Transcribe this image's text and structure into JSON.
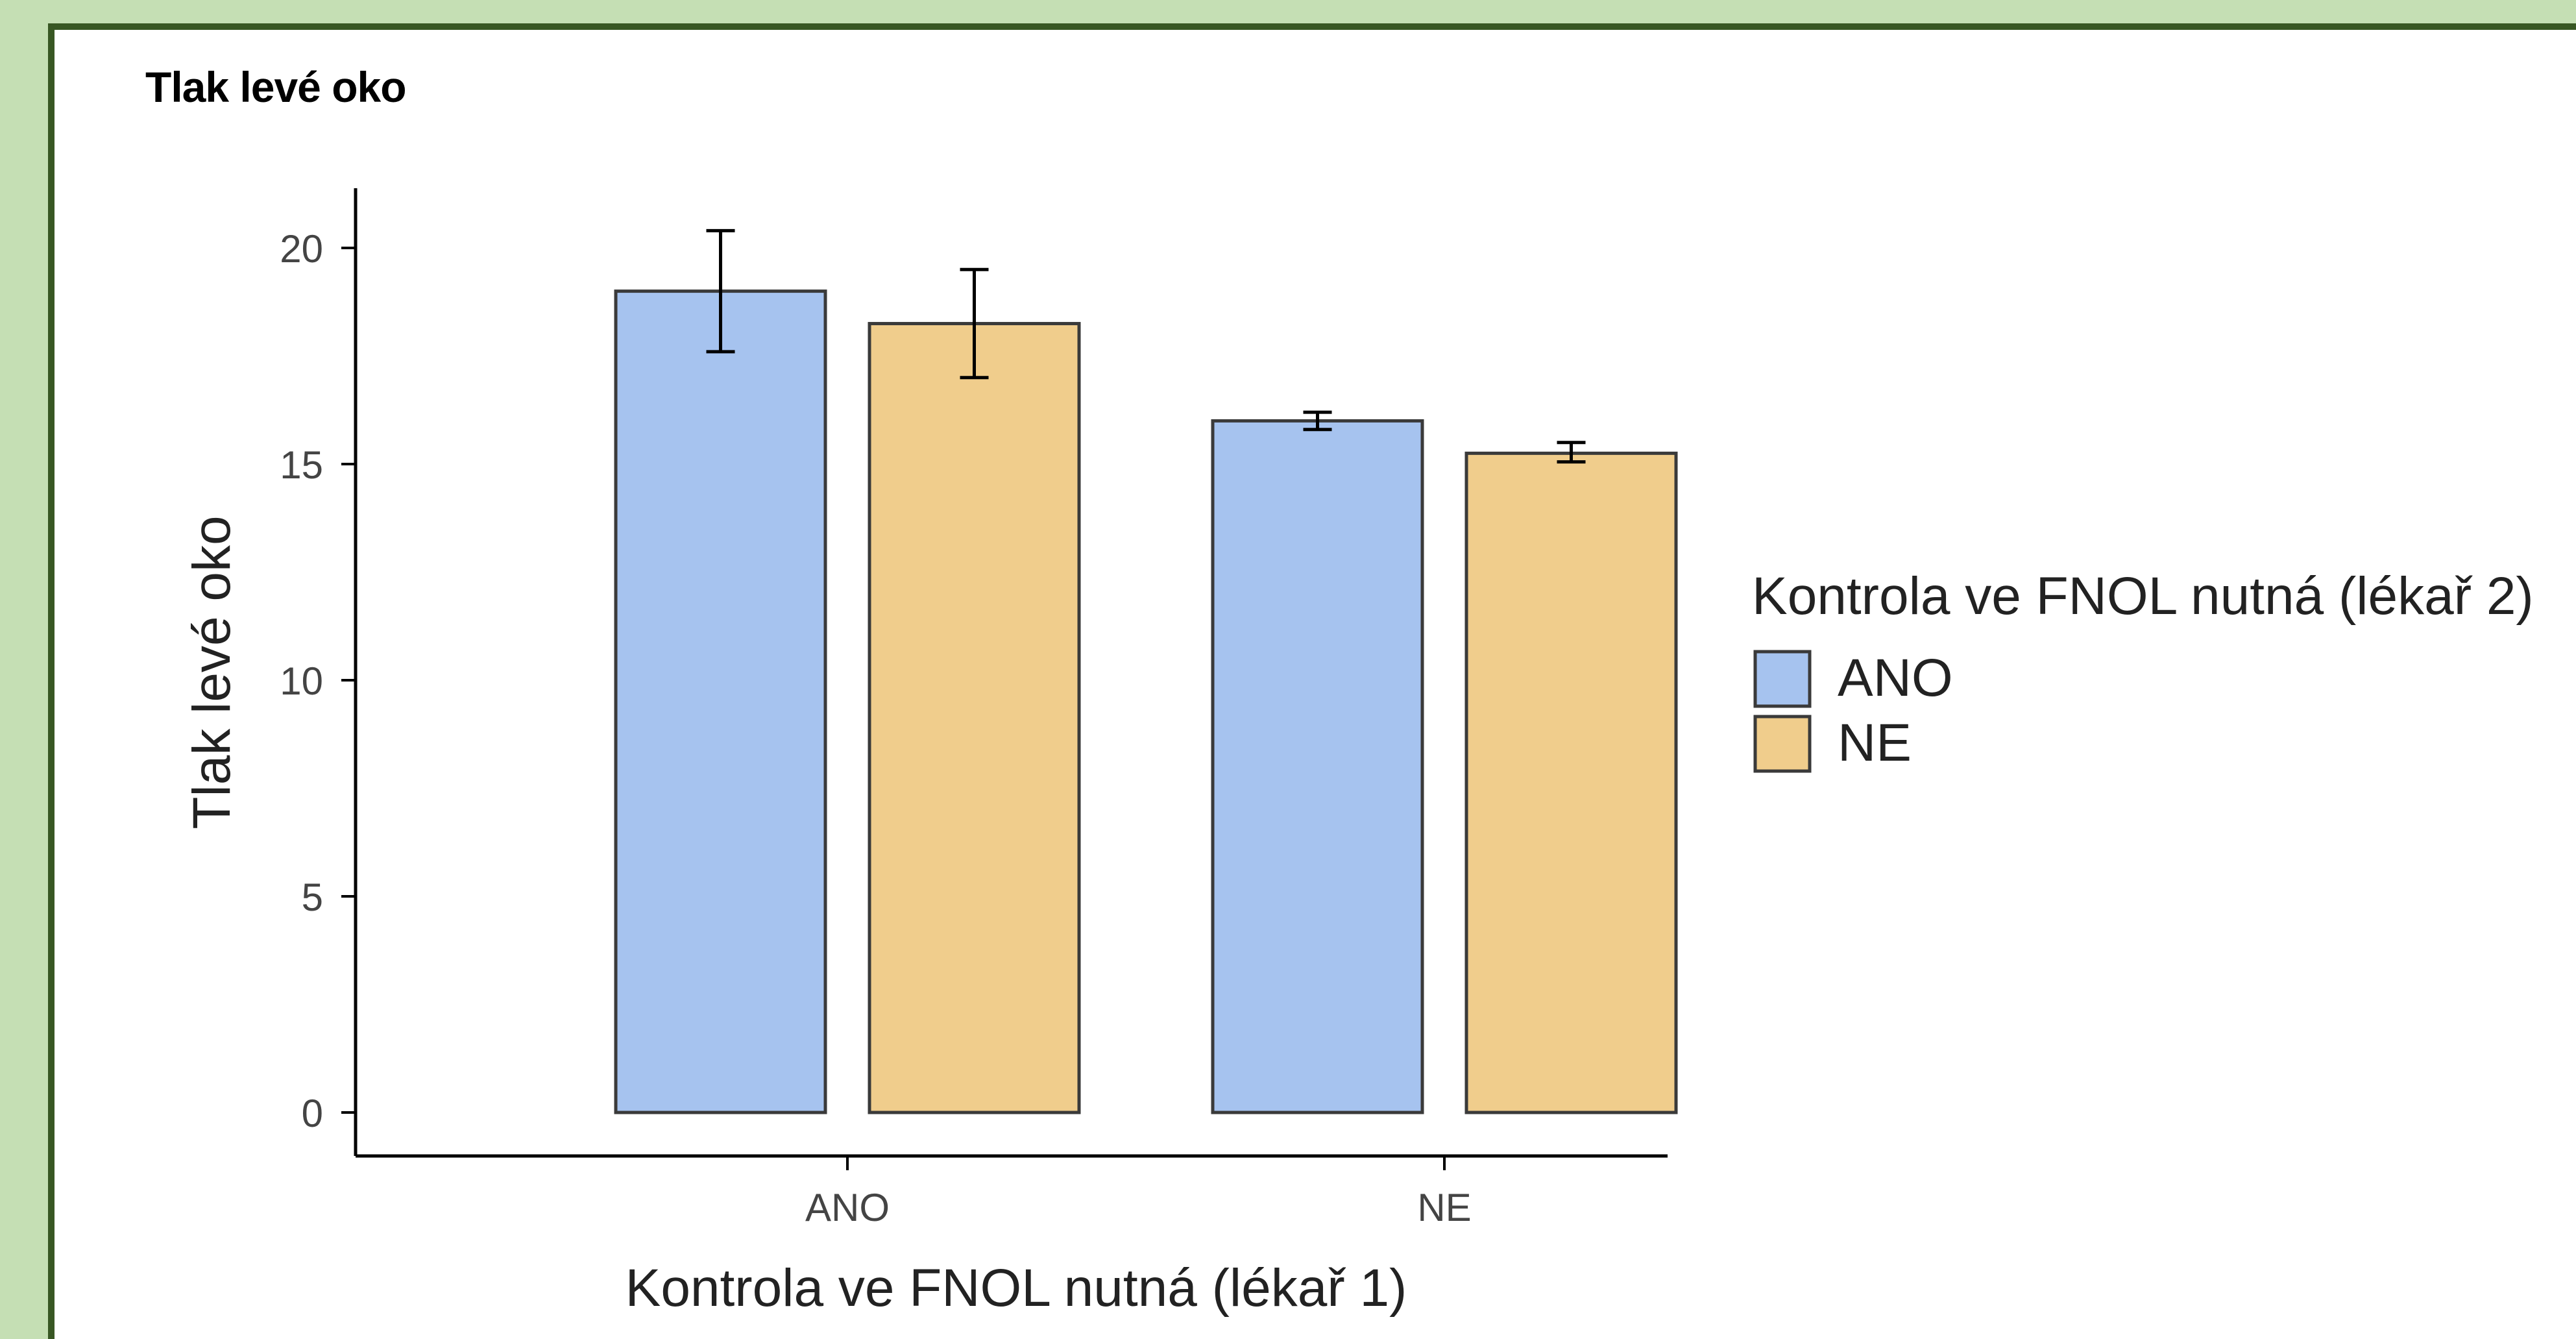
{
  "panel": {
    "title": "Tlak levé oko"
  },
  "chart_data": {
    "type": "bar",
    "categories": [
      "ANO",
      "NE"
    ],
    "series": [
      {
        "name": "ANO",
        "color": "#a6c3ef",
        "values": [
          19.0,
          16.0
        ],
        "error": [
          [
            17.6,
            20.4
          ],
          [
            15.8,
            16.2
          ]
        ]
      },
      {
        "name": "NE",
        "color": "#f0cd8c",
        "values": [
          18.25,
          15.25
        ],
        "error": [
          [
            17.0,
            19.5
          ],
          [
            15.05,
            15.5
          ]
        ]
      }
    ],
    "xlabel": "Kontrola ve FNOL nutná (lékař 1)",
    "ylabel": "Tlak levé oko",
    "ylim": [
      0,
      21
    ],
    "yticks": [
      0,
      5,
      10,
      15,
      20
    ],
    "legend": {
      "title": "Kontrola ve FNOL nutná (lékař 2)",
      "placement": "right"
    },
    "grid": false
  }
}
